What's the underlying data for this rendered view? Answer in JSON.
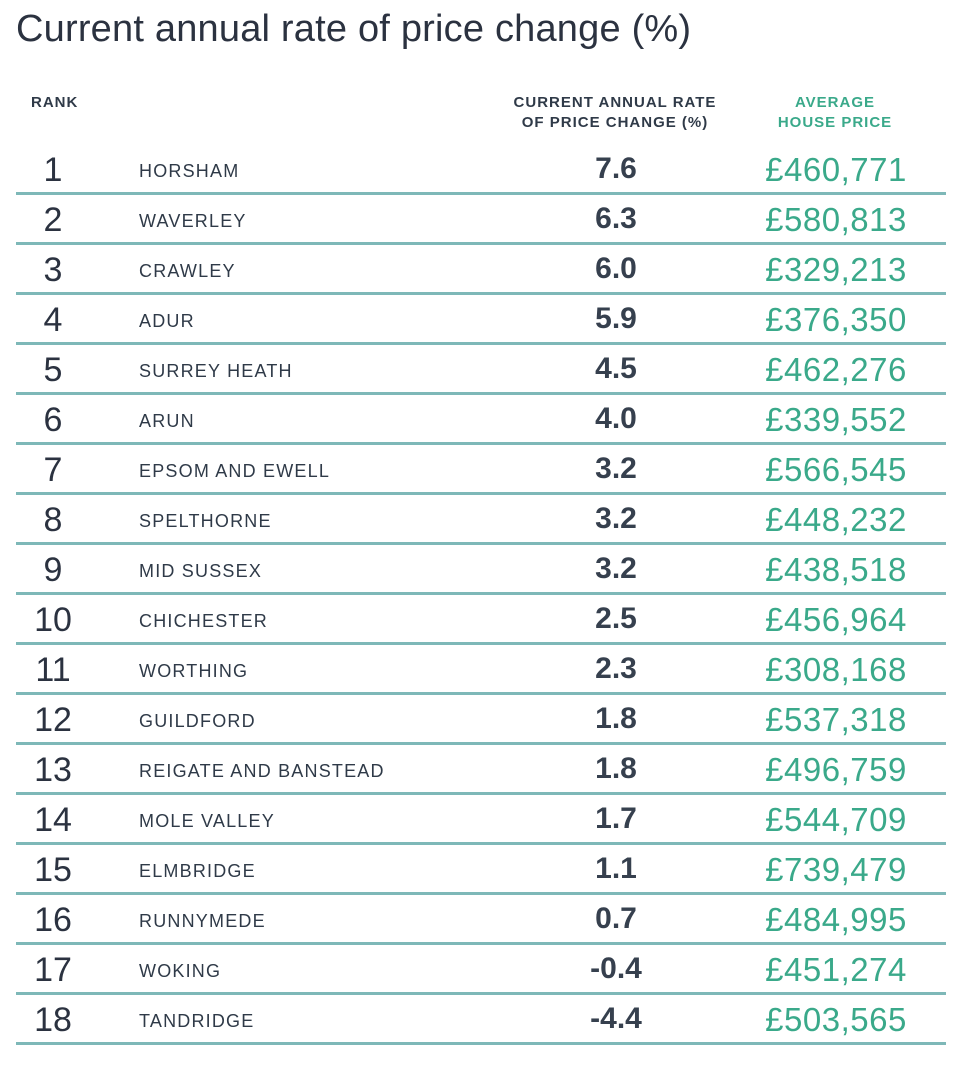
{
  "chart_data": {
    "type": "table",
    "title": "Current annual rate of price change (%)",
    "columns": [
      "RANK",
      "",
      "CURRENT ANNUAL RATE OF PRICE CHANGE (%)",
      "AVERAGE HOUSE PRICE"
    ],
    "header": {
      "rank": "RANK",
      "rate_line1": "CURRENT ANNUAL RATE",
      "rate_line2": "OF PRICE CHANGE (%)",
      "price_line1": "AVERAGE",
      "price_line2": "HOUSE PRICE"
    },
    "rows": [
      {
        "rank": "1",
        "name": "HORSHAM",
        "rate": "7.6",
        "price": "£460,771"
      },
      {
        "rank": "2",
        "name": "WAVERLEY",
        "rate": "6.3",
        "price": "£580,813"
      },
      {
        "rank": "3",
        "name": "CRAWLEY",
        "rate": "6.0",
        "price": "£329,213"
      },
      {
        "rank": "4",
        "name": "ADUR",
        "rate": "5.9",
        "price": "£376,350"
      },
      {
        "rank": "5",
        "name": "SURREY HEATH",
        "rate": "4.5",
        "price": "£462,276"
      },
      {
        "rank": "6",
        "name": "ARUN",
        "rate": "4.0",
        "price": "£339,552"
      },
      {
        "rank": "7",
        "name": "EPSOM AND EWELL",
        "rate": "3.2",
        "price": "£566,545"
      },
      {
        "rank": "8",
        "name": "SPELTHORNE",
        "rate": "3.2",
        "price": "£448,232"
      },
      {
        "rank": "9",
        "name": "MID SUSSEX",
        "rate": "3.2",
        "price": "£438,518"
      },
      {
        "rank": "10",
        "name": "CHICHESTER",
        "rate": "2.5",
        "price": "£456,964"
      },
      {
        "rank": "11",
        "name": "WORTHING",
        "rate": "2.3",
        "price": "£308,168"
      },
      {
        "rank": "12",
        "name": "GUILDFORD",
        "rate": "1.8",
        "price": "£537,318"
      },
      {
        "rank": "13",
        "name": "REIGATE AND BANSTEAD",
        "rate": "1.8",
        "price": "£496,759"
      },
      {
        "rank": "14",
        "name": "MOLE VALLEY",
        "rate": "1.7",
        "price": "£544,709"
      },
      {
        "rank": "15",
        "name": "ELMBRIDGE",
        "rate": "1.1",
        "price": "£739,479"
      },
      {
        "rank": "16",
        "name": "RUNNYMEDE",
        "rate": "0.7",
        "price": "£484,995"
      },
      {
        "rank": "17",
        "name": "WOKING",
        "rate": "-0.4",
        "price": "£451,274"
      },
      {
        "rank": "18",
        "name": "TANDRIDGE",
        "rate": "-4.4",
        "price": "£503,565"
      }
    ]
  },
  "colors": {
    "text": "#2f3a48",
    "accent": "#3aa98a",
    "divider": "#7eb8b8"
  }
}
